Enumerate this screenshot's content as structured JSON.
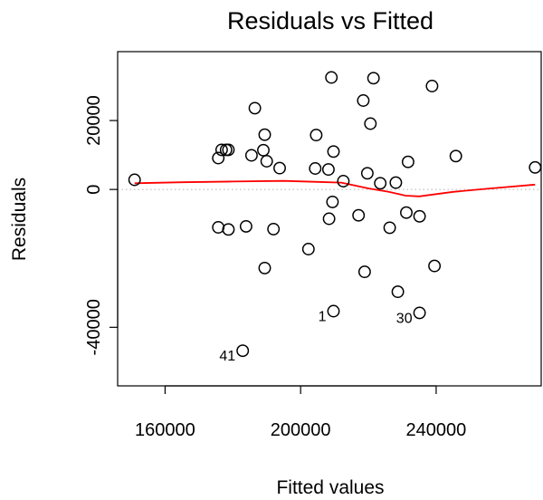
{
  "chart_data": {
    "type": "scatter",
    "title": "Residuals vs Fitted",
    "xlabel": "Fitted values",
    "ylabel": "Residuals",
    "xlim": [
      146000,
      271000
    ],
    "ylim": [
      -57000,
      40000
    ],
    "xticks": [
      160000,
      200000,
      240000
    ],
    "yticks": [
      -40000,
      0,
      20000
    ],
    "ytick_labels_shown": [
      "-40000",
      "0",
      "20000"
    ],
    "reference_line": {
      "y": 0,
      "style": "dotted",
      "color": "#bbbbbb"
    },
    "points": [
      {
        "x": 151000,
        "y": 2800
      },
      {
        "x": 175700,
        "y": 9100
      },
      {
        "x": 176700,
        "y": 11500
      },
      {
        "x": 178000,
        "y": 11500
      },
      {
        "x": 178700,
        "y": 11500
      },
      {
        "x": 175700,
        "y": -11000
      },
      {
        "x": 178700,
        "y": -11600
      },
      {
        "x": 182900,
        "y": -46800,
        "label": "41"
      },
      {
        "x": 183900,
        "y": -10700
      },
      {
        "x": 185500,
        "y": 9900
      },
      {
        "x": 186500,
        "y": 23600
      },
      {
        "x": 189000,
        "y": 11400
      },
      {
        "x": 189400,
        "y": 15900
      },
      {
        "x": 189400,
        "y": -22800
      },
      {
        "x": 190000,
        "y": 8200
      },
      {
        "x": 192000,
        "y": -11500
      },
      {
        "x": 193800,
        "y": 6200
      },
      {
        "x": 202300,
        "y": -17300
      },
      {
        "x": 204300,
        "y": 6100
      },
      {
        "x": 204600,
        "y": 15800
      },
      {
        "x": 208200,
        "y": 5800
      },
      {
        "x": 208400,
        "y": -8500
      },
      {
        "x": 209100,
        "y": 32500
      },
      {
        "x": 209400,
        "y": -3600
      },
      {
        "x": 209700,
        "y": 11000
      },
      {
        "x": 209700,
        "y": -35300,
        "label": "1"
      },
      {
        "x": 212600,
        "y": 2400
      },
      {
        "x": 217100,
        "y": -7500
      },
      {
        "x": 218500,
        "y": 25800
      },
      {
        "x": 218900,
        "y": -23900
      },
      {
        "x": 219700,
        "y": 4700
      },
      {
        "x": 220600,
        "y": 19100
      },
      {
        "x": 221500,
        "y": 32300
      },
      {
        "x": 223500,
        "y": 1800
      },
      {
        "x": 226300,
        "y": -11100
      },
      {
        "x": 228100,
        "y": 2000
      },
      {
        "x": 228700,
        "y": -29700
      },
      {
        "x": 231200,
        "y": -6700
      },
      {
        "x": 231700,
        "y": 8000
      },
      {
        "x": 235100,
        "y": -7800
      },
      {
        "x": 235100,
        "y": -35800,
        "label": "30"
      },
      {
        "x": 238800,
        "y": 30000
      },
      {
        "x": 239500,
        "y": -22200
      },
      {
        "x": 245800,
        "y": 9700
      },
      {
        "x": 269200,
        "y": 6400
      }
    ],
    "smooth_line": {
      "color": "#ff0000",
      "x": [
        151000,
        165000,
        180000,
        195000,
        205000,
        212000,
        220000,
        226000,
        231000,
        235000,
        245000,
        255000,
        269200
      ],
      "y": [
        1800,
        2100,
        2300,
        2500,
        2200,
        2000,
        300,
        -700,
        -1800,
        -2000,
        -700,
        200,
        1400
      ]
    },
    "grid": false,
    "legend": "none"
  }
}
